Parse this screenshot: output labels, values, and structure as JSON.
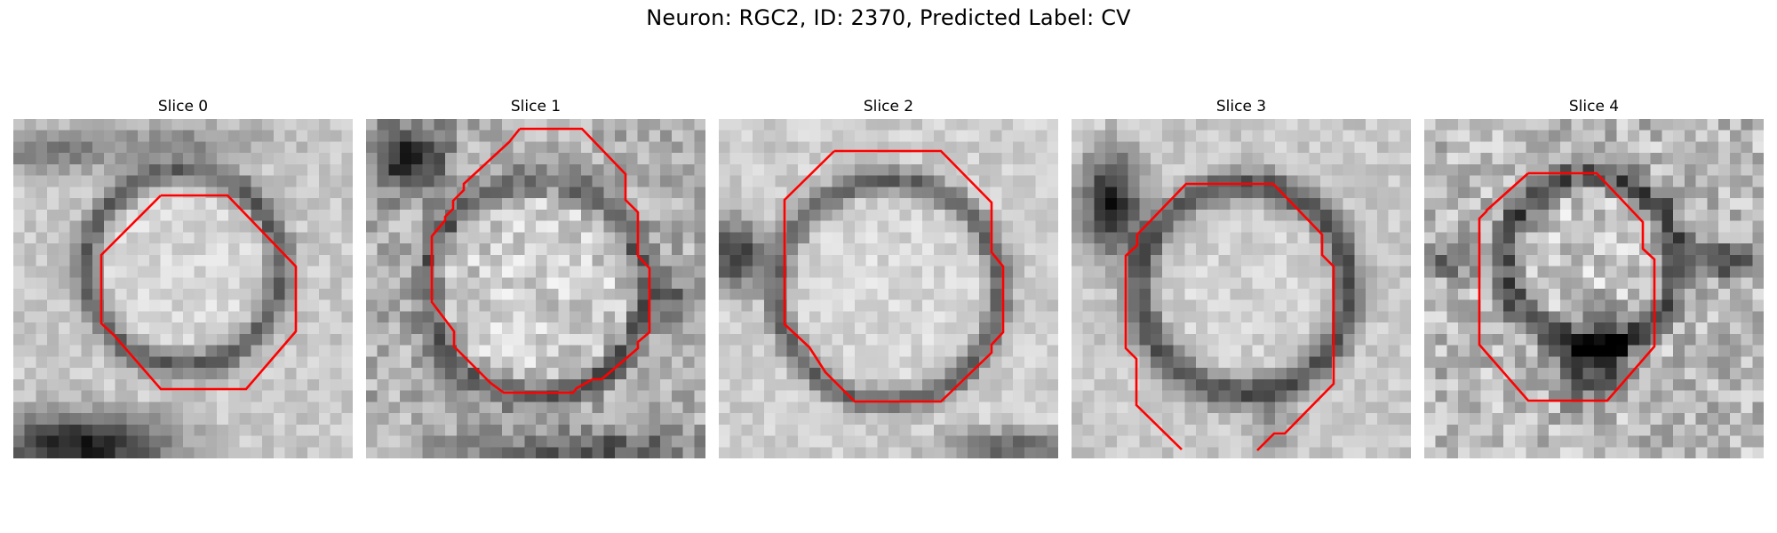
{
  "figure": {
    "title": "Neuron: RGC2, ID: 2370, Predicted Label: CV"
  },
  "panels": [
    {
      "title": "Slice 0"
    },
    {
      "title": "Slice 1"
    },
    {
      "title": "Slice 2"
    },
    {
      "title": "Slice 3"
    },
    {
      "title": "Slice 4"
    }
  ],
  "colors": {
    "contour": "#ff0000",
    "background": "#ffffff"
  }
}
